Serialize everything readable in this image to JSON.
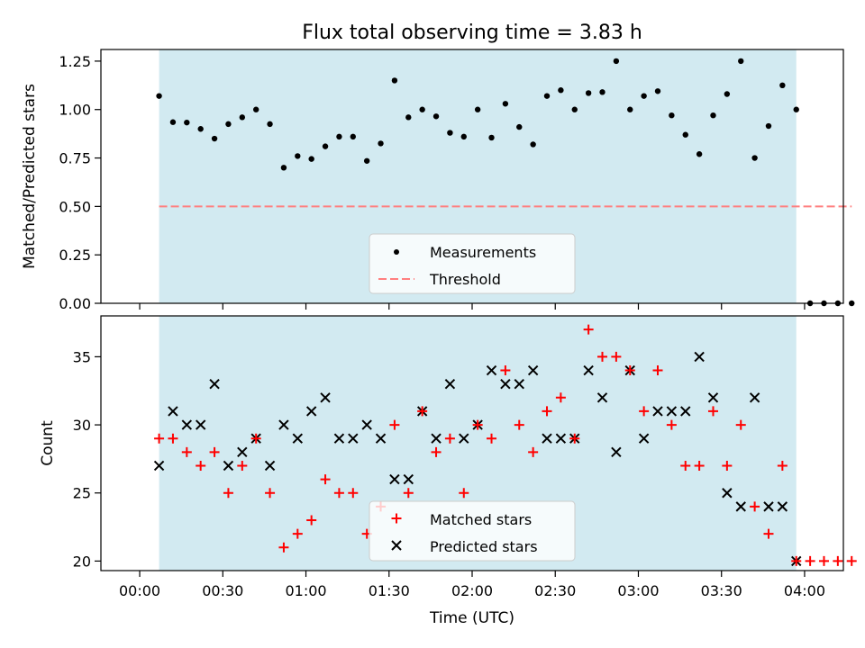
{
  "figure": {
    "title": "Flux total observing time = 3.83 h"
  },
  "chart_data": [
    {
      "type": "scatter",
      "ylabel": "Matched/Predicted stars",
      "xlabel": "",
      "ylim": [
        0.0,
        1.31
      ],
      "xlim_minutes": [
        -14,
        254
      ],
      "ytick_labels": [
        "0.00",
        "0.25",
        "0.50",
        "0.75",
        "1.00",
        "1.25"
      ],
      "ytick_values": [
        0.0,
        0.25,
        0.5,
        0.75,
        1.0,
        1.25
      ],
      "shaded_span": {
        "from": "00:07",
        "to": "03:57",
        "color": "#add8e6"
      },
      "threshold": {
        "value": 0.5,
        "from": "00:07",
        "to": "04:17",
        "color": "#ff7f7f"
      },
      "legend": {
        "placement": "lower-center",
        "entries": [
          "Measurements",
          "Threshold"
        ]
      },
      "series": [
        {
          "name": "Measurements",
          "color": "#000000",
          "x": [
            "00:07",
            "00:12",
            "00:17",
            "00:22",
            "00:27",
            "00:32",
            "00:37",
            "00:42",
            "00:47",
            "00:52",
            "00:57",
            "01:02",
            "01:07",
            "01:12",
            "01:17",
            "01:22",
            "01:27",
            "01:32",
            "01:37",
            "01:42",
            "01:47",
            "01:52",
            "01:57",
            "02:02",
            "02:07",
            "02:12",
            "02:17",
            "02:22",
            "02:27",
            "02:32",
            "02:37",
            "02:42",
            "02:47",
            "02:52",
            "02:57",
            "03:02",
            "03:07",
            "03:12",
            "03:17",
            "03:22",
            "03:27",
            "03:32",
            "03:37",
            "03:42",
            "03:47",
            "03:52",
            "03:57",
            "04:02",
            "04:07",
            "04:12",
            "04:17"
          ],
          "y": [
            1.07,
            0.935,
            0.933,
            0.9,
            0.85,
            0.925,
            0.96,
            1.0,
            0.925,
            0.7,
            0.76,
            0.745,
            0.81,
            0.86,
            0.86,
            0.735,
            0.825,
            1.15,
            0.96,
            1.0,
            0.965,
            0.88,
            0.86,
            1.0,
            0.855,
            1.03,
            0.91,
            0.82,
            1.07,
            1.1,
            1.0,
            1.085,
            1.09,
            1.25,
            1.0,
            1.07,
            1.095,
            0.97,
            0.87,
            0.77,
            0.97,
            1.08,
            1.25,
            0.75,
            0.915,
            1.125,
            1.0,
            0.0,
            0.0,
            0.0,
            0.0
          ]
        }
      ]
    },
    {
      "type": "scatter",
      "ylabel": "Count",
      "xlabel": "Time (UTC)",
      "ylim": [
        19.3,
        38.0
      ],
      "xlim_minutes": [
        -14,
        254
      ],
      "ytick_labels": [
        "20",
        "25",
        "30",
        "35"
      ],
      "ytick_values": [
        20,
        25,
        30,
        35
      ],
      "xtick_labels": [
        "00:00",
        "00:30",
        "01:00",
        "01:30",
        "02:00",
        "02:30",
        "03:00",
        "03:30",
        "04:00"
      ],
      "shaded_span": {
        "from": "00:07",
        "to": "03:57",
        "color": "#add8e6"
      },
      "legend": {
        "placement": "lower-center",
        "entries": [
          "Matched stars",
          "Predicted stars"
        ]
      },
      "x": [
        "00:07",
        "00:12",
        "00:17",
        "00:22",
        "00:27",
        "00:32",
        "00:37",
        "00:42",
        "00:47",
        "00:52",
        "00:57",
        "01:02",
        "01:07",
        "01:12",
        "01:17",
        "01:22",
        "01:27",
        "01:32",
        "01:37",
        "01:42",
        "01:47",
        "01:52",
        "01:57",
        "02:02",
        "02:07",
        "02:12",
        "02:17",
        "02:22",
        "02:27",
        "02:32",
        "02:37",
        "02:42",
        "02:47",
        "02:52",
        "02:57",
        "03:02",
        "03:07",
        "03:12",
        "03:17",
        "03:22",
        "03:27",
        "03:32",
        "03:37",
        "03:42",
        "03:47",
        "03:52",
        "03:57",
        "04:02",
        "04:07",
        "04:12",
        "04:17"
      ],
      "series": [
        {
          "name": "Matched stars",
          "color": "#ff0000",
          "marker": "plus",
          "values": [
            29,
            29,
            28,
            27,
            28,
            25,
            27,
            29,
            25,
            21,
            22,
            23,
            26,
            25,
            25,
            22,
            24,
            30,
            25,
            31,
            28,
            29,
            25,
            30,
            29,
            34,
            30,
            28,
            31,
            32,
            29,
            37,
            35,
            35,
            34,
            31,
            34,
            30,
            27,
            27,
            31,
            27,
            30,
            24,
            22,
            27,
            20,
            20,
            20,
            20,
            20
          ]
        },
        {
          "name": "Predicted stars",
          "color": "#000000",
          "marker": "x",
          "values": [
            27,
            31,
            30,
            30,
            33,
            27,
            28,
            29,
            27,
            30,
            29,
            31,
            32,
            29,
            29,
            30,
            29,
            26,
            26,
            31,
            29,
            33,
            29,
            30,
            34,
            33,
            33,
            34,
            29,
            29,
            29,
            34,
            32,
            28,
            34,
            29,
            31,
            31,
            31,
            35,
            32,
            25,
            24,
            32,
            24,
            24,
            20,
            null,
            null,
            null,
            null
          ]
        }
      ]
    }
  ]
}
